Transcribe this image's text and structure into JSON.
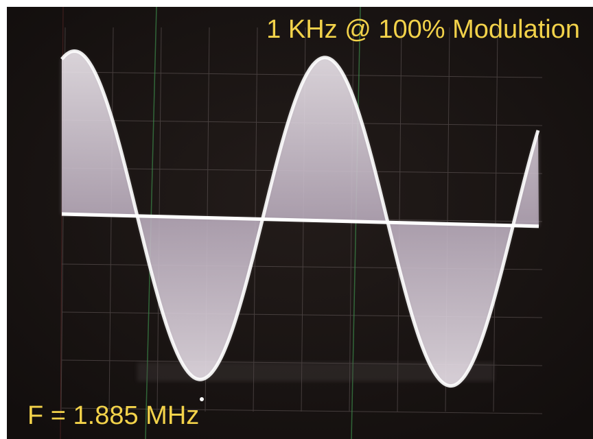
{
  "caption_top": "1 KHz @ 100% Modulation",
  "caption_bottom": "F = 1.885 MHz"
}
